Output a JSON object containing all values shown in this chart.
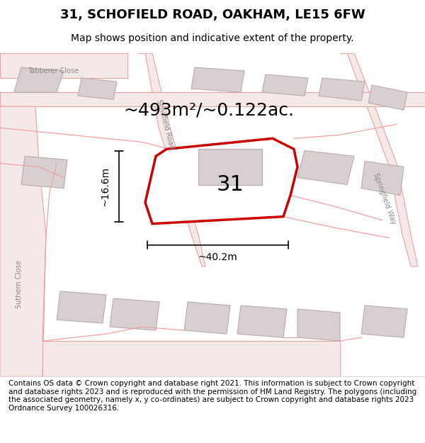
{
  "title": "31, SCHOFIELD ROAD, OAKHAM, LE15 6FW",
  "subtitle": "Map shows position and indicative extent of the property.",
  "area_text": "~493m²/~0.122ac.",
  "width_label": "~40.2m",
  "height_label": "~16.6m",
  "number_label": "31",
  "footer_text": "Contains OS data © Crown copyright and database right 2021. This information is subject to Crown copyright and database rights 2023 and is reproduced with the permission of HM Land Registry. The polygons (including the associated geometry, namely x, y co-ordinates) are subject to Crown copyright and database rights 2023 Ordnance Survey 100026316.",
  "background_color": "#f5f0f0",
  "map_bg": "#ffffff",
  "road_color": "#f0a0a0",
  "building_color": "#d8d0d0",
  "highlight_color": "#cc0000",
  "highlight_fill": "#ffffff",
  "text_color": "#000000",
  "title_fontsize": 13,
  "subtitle_fontsize": 10,
  "footer_fontsize": 7.5,
  "label_fontsize": 13,
  "number_fontsize": 22,
  "area_fontsize": 18
}
